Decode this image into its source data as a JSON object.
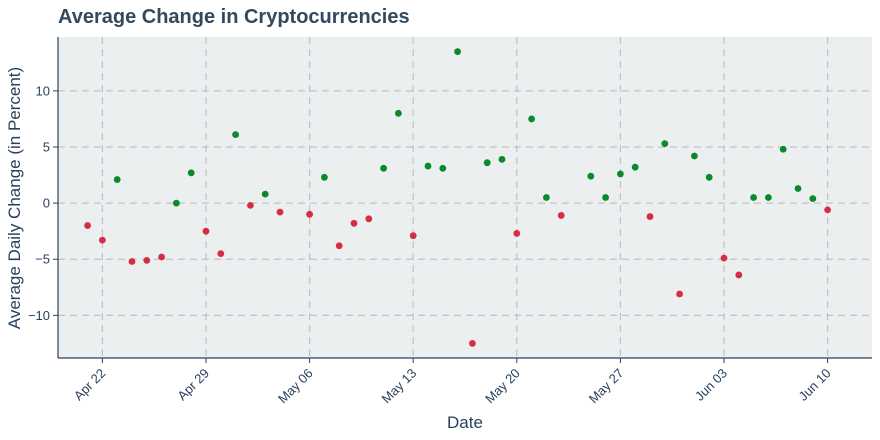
{
  "chart_data": {
    "type": "scatter",
    "title": "Average Change in Cryptocurrencies",
    "xlabel": "Date",
    "ylabel": "Average Daily Change (in Percent)",
    "xlim": [
      "2024-04-19",
      "2024-06-13"
    ],
    "ylim": [
      -13.8,
      14.8
    ],
    "grid": true,
    "colors": {
      "positive": "#0a8a2a",
      "negative": "#d62d45",
      "plot_bg": "#ebeff0"
    },
    "x_ticks": [
      {
        "date": "2024-04-22",
        "label": "Apr 22"
      },
      {
        "date": "2024-04-29",
        "label": "Apr 29"
      },
      {
        "date": "2024-05-06",
        "label": "May 06"
      },
      {
        "date": "2024-05-13",
        "label": "May 13"
      },
      {
        "date": "2024-05-20",
        "label": "May 20"
      },
      {
        "date": "2024-05-27",
        "label": "May 27"
      },
      {
        "date": "2024-06-03",
        "label": "Jun 03"
      },
      {
        "date": "2024-06-10",
        "label": "Jun 10"
      }
    ],
    "y_ticks": [
      {
        "value": 10,
        "label": "10"
      },
      {
        "value": 5,
        "label": "5"
      },
      {
        "value": 0,
        "label": "0"
      },
      {
        "value": -5,
        "label": "−5"
      },
      {
        "value": -10,
        "label": "−10"
      }
    ],
    "points": [
      {
        "x": "2024-04-21",
        "y": -2.0
      },
      {
        "x": "2024-04-22",
        "y": -3.3
      },
      {
        "x": "2024-04-23",
        "y": 2.1
      },
      {
        "x": "2024-04-24",
        "y": -5.2
      },
      {
        "x": "2024-04-25",
        "y": -5.1
      },
      {
        "x": "2024-04-26",
        "y": -4.8
      },
      {
        "x": "2024-04-27",
        "y": 0.0
      },
      {
        "x": "2024-04-28",
        "y": 2.7
      },
      {
        "x": "2024-04-29",
        "y": -2.5
      },
      {
        "x": "2024-04-30",
        "y": -4.5
      },
      {
        "x": "2024-05-01",
        "y": 6.1
      },
      {
        "x": "2024-05-02",
        "y": -0.2
      },
      {
        "x": "2024-05-03",
        "y": 0.8
      },
      {
        "x": "2024-05-04",
        "y": -0.8
      },
      {
        "x": "2024-05-06",
        "y": -1.0
      },
      {
        "x": "2024-05-07",
        "y": 2.3
      },
      {
        "x": "2024-05-08",
        "y": -3.8
      },
      {
        "x": "2024-05-09",
        "y": -1.8
      },
      {
        "x": "2024-05-10",
        "y": -1.4
      },
      {
        "x": "2024-05-11",
        "y": 3.1
      },
      {
        "x": "2024-05-12",
        "y": 8.0
      },
      {
        "x": "2024-05-13",
        "y": -2.9
      },
      {
        "x": "2024-05-14",
        "y": 3.3
      },
      {
        "x": "2024-05-15",
        "y": 3.1
      },
      {
        "x": "2024-05-16",
        "y": 13.5
      },
      {
        "x": "2024-05-17",
        "y": -12.5
      },
      {
        "x": "2024-05-18",
        "y": 3.6
      },
      {
        "x": "2024-05-19",
        "y": 3.9
      },
      {
        "x": "2024-05-20",
        "y": -2.7
      },
      {
        "x": "2024-05-21",
        "y": 7.5
      },
      {
        "x": "2024-05-22",
        "y": 0.5
      },
      {
        "x": "2024-05-23",
        "y": -1.1
      },
      {
        "x": "2024-05-25",
        "y": 2.4
      },
      {
        "x": "2024-05-26",
        "y": 0.5
      },
      {
        "x": "2024-05-27",
        "y": 2.6
      },
      {
        "x": "2024-05-28",
        "y": 3.2
      },
      {
        "x": "2024-05-29",
        "y": -1.2
      },
      {
        "x": "2024-05-30",
        "y": 5.3
      },
      {
        "x": "2024-05-31",
        "y": -8.1
      },
      {
        "x": "2024-06-01",
        "y": 4.2
      },
      {
        "x": "2024-06-02",
        "y": 2.3
      },
      {
        "x": "2024-06-03",
        "y": -4.9
      },
      {
        "x": "2024-06-04",
        "y": -6.4
      },
      {
        "x": "2024-06-05",
        "y": 0.5
      },
      {
        "x": "2024-06-06",
        "y": 0.5
      },
      {
        "x": "2024-06-07",
        "y": 4.8
      },
      {
        "x": "2024-06-08",
        "y": 1.3
      },
      {
        "x": "2024-06-09",
        "y": 0.4
      },
      {
        "x": "2024-06-10",
        "y": -0.6
      }
    ]
  }
}
